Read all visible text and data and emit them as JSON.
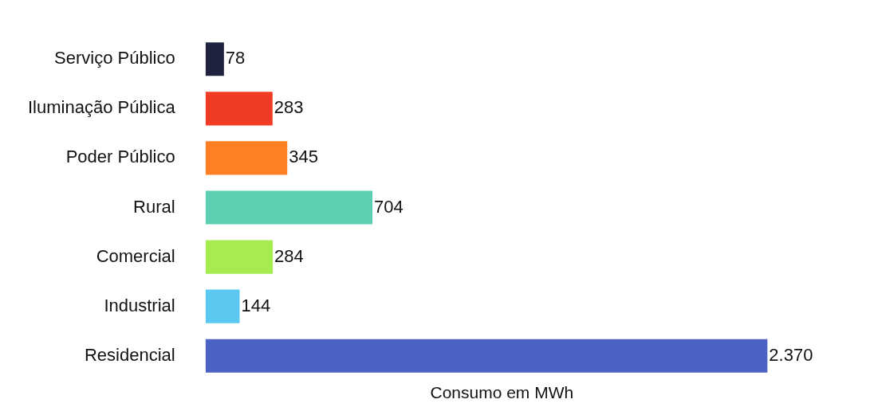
{
  "chart_data": {
    "type": "bar",
    "orientation": "horizontal",
    "xlabel": "Consumo em MWh",
    "categories": [
      "Serviço Público",
      "Iluminação Pública",
      "Poder Público",
      "Rural",
      "Comercial",
      "Industrial",
      "Residencial"
    ],
    "values": [
      78,
      283,
      345,
      704,
      284,
      144,
      2370
    ],
    "value_labels": [
      "78",
      "283",
      "345",
      "704",
      "284",
      "144",
      "2.370"
    ],
    "colors": [
      "#1f2340",
      "#f03c24",
      "#ff7f24",
      "#5ccfb2",
      "#a6eb4f",
      "#5bc8f2",
      "#4a63c4"
    ],
    "grid": false,
    "legend": false
  }
}
